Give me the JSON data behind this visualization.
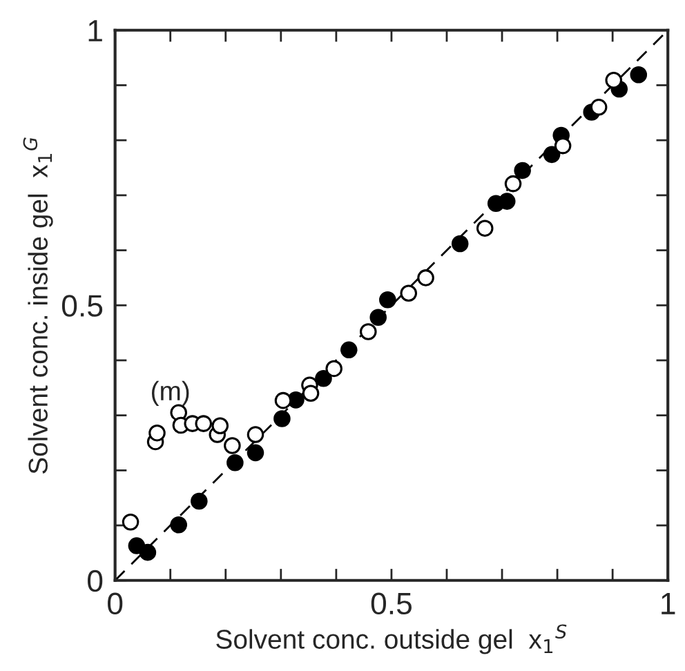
{
  "chart_data": {
    "type": "scatter",
    "xlabel": "Solvent conc. outside gel  x$_{1}$$^{S}$",
    "ylabel": "Solvent conc. inside gel  x$_{1}$$^{G}$",
    "annotations": [
      "(m)"
    ],
    "xlim": [
      0,
      1
    ],
    "ylim": [
      0,
      1
    ],
    "xticks": [
      0,
      {
        "value": 0.1,
        "label": null
      },
      {
        "value": 0.2,
        "label": null
      },
      {
        "value": 0.3,
        "label": null
      },
      {
        "value": 0.4,
        "label": null
      },
      0.5,
      {
        "value": 0.6,
        "label": null
      },
      {
        "value": 0.7,
        "label": null
      },
      {
        "value": 0.8,
        "label": null
      },
      {
        "value": 0.9,
        "label": null
      },
      1
    ],
    "yticks": [
      0,
      {
        "value": 0.1,
        "label": null
      },
      {
        "value": 0.2,
        "label": null
      },
      {
        "value": 0.3,
        "label": null
      },
      {
        "value": 0.4,
        "label": null
      },
      0.5,
      {
        "value": 0.6,
        "label": null
      },
      {
        "value": 0.7,
        "label": null
      },
      {
        "value": 0.8,
        "label": null
      },
      {
        "value": 0.9,
        "label": null
      },
      1
    ],
    "grid": false,
    "legend": false,
    "series": [
      {
        "type": "line",
        "marker": "none",
        "line_style": "dashed",
        "color": "#000000",
        "x": [
          0,
          1
        ],
        "values": [
          0,
          1
        ]
      },
      {
        "marker": "circle",
        "color": "#000000",
        "x": [
          0.039,
          0.059,
          0.115,
          0.152,
          0.217,
          0.254,
          0.302,
          0.327,
          0.377,
          0.423,
          0.476,
          0.493,
          0.624,
          0.689,
          0.709,
          0.737,
          0.79,
          0.807,
          0.862,
          0.912,
          0.947
        ],
        "values": [
          0.063,
          0.051,
          0.101,
          0.144,
          0.214,
          0.232,
          0.294,
          0.328,
          0.367,
          0.419,
          0.478,
          0.51,
          0.612,
          0.685,
          0.689,
          0.745,
          0.774,
          0.809,
          0.851,
          0.893,
          0.919
        ]
      },
      {
        "marker": "circle",
        "color": "#ffffff",
        "x": [
          0.028,
          0.073,
          0.076,
          0.115,
          0.119,
          0.14,
          0.16,
          0.185,
          0.19,
          0.212,
          0.254,
          0.304,
          0.352,
          0.354,
          0.396,
          0.458,
          0.531,
          0.562,
          0.669,
          0.72,
          0.81,
          0.875,
          0.902
        ],
        "values": [
          0.106,
          0.252,
          0.268,
          0.305,
          0.282,
          0.285,
          0.285,
          0.265,
          0.281,
          0.245,
          0.265,
          0.327,
          0.355,
          0.34,
          0.385,
          0.452,
          0.522,
          0.55,
          0.64,
          0.721,
          0.79,
          0.86,
          0.909
        ]
      }
    ]
  }
}
